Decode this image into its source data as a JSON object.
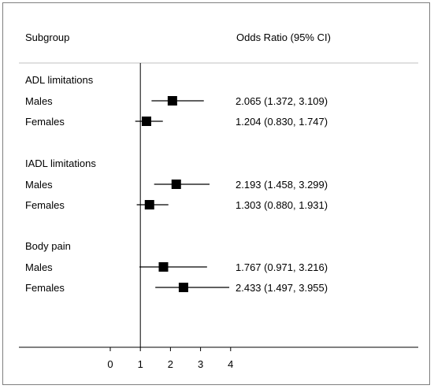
{
  "chart_data": {
    "type": "forest",
    "header_left": "Subgroup",
    "header_right": "Odds Ratio (95% CI)",
    "xticks": [
      0,
      1,
      2,
      3,
      4
    ],
    "xlim": [
      0,
      4
    ],
    "reference_line": 1,
    "groups": [
      {
        "label": "ADL limitations",
        "rows": [
          {
            "label": "Males",
            "or": 2.065,
            "lower": 1.372,
            "upper": 3.109,
            "text": "2.065 (1.372, 3.109)"
          },
          {
            "label": "Females",
            "or": 1.204,
            "lower": 0.83,
            "upper": 1.747,
            "text": "1.204 (0.830, 1.747)"
          }
        ]
      },
      {
        "label": "IADL limitations",
        "rows": [
          {
            "label": "Males",
            "or": 2.193,
            "lower": 1.458,
            "upper": 3.299,
            "text": "2.193 (1.458, 3.299)"
          },
          {
            "label": "Females",
            "or": 1.303,
            "lower": 0.88,
            "upper": 1.931,
            "text": "1.303 (0.880, 1.931)"
          }
        ]
      },
      {
        "label": "Body pain",
        "rows": [
          {
            "label": "Males",
            "or": 1.767,
            "lower": 0.971,
            "upper": 3.216,
            "text": "1.767 (0.971, 3.216)"
          },
          {
            "label": "Females",
            "or": 2.433,
            "lower": 1.497,
            "upper": 3.955,
            "text": "2.433 (1.497, 3.955)"
          }
        ]
      }
    ]
  }
}
